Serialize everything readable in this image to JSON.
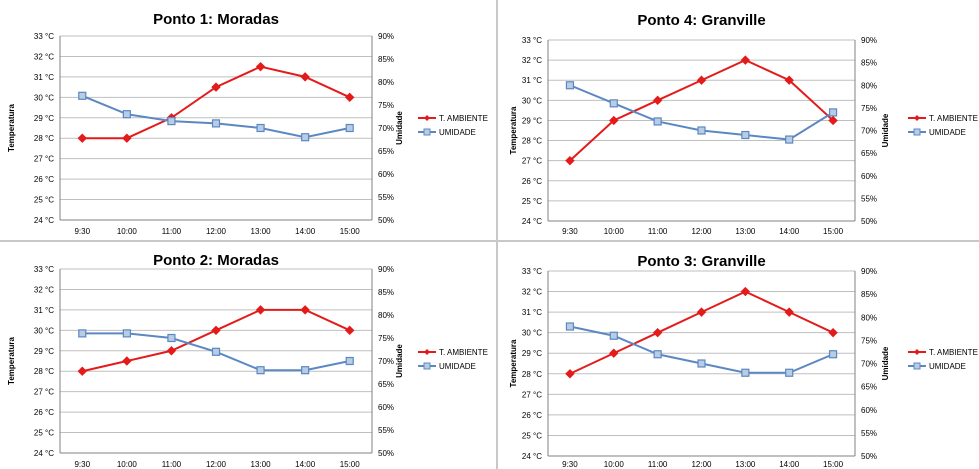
{
  "colors": {
    "temperature": "#e41b1b",
    "humidity": "#5b88c2",
    "grid": "#bfbfbf",
    "axis": "#808080",
    "text": "#000000"
  },
  "chart_data": [
    {
      "type": "line",
      "title": "Ponto 1: Moradas",
      "categories": [
        "9:30",
        "10:00",
        "11:00",
        "12:00",
        "13:00",
        "14:00",
        "15:00"
      ],
      "ylabel": "Temperatura",
      "y2label": "Umidade",
      "yticks": [
        "24 °C",
        "25 °C",
        "26 °C",
        "27 °C",
        "28 °C",
        "29 °C",
        "30 °C",
        "31 °C",
        "32 °C",
        "33 °C"
      ],
      "y2ticks": [
        "50%",
        "55%",
        "60%",
        "65%",
        "70%",
        "75%",
        "80%",
        "85%",
        "90%"
      ],
      "ylim": [
        24,
        33
      ],
      "y2lim": [
        50,
        90
      ],
      "grid": true,
      "legend_position": "right",
      "series": [
        {
          "name": "T. AMBIENTE",
          "axis": "left",
          "marker": "diamond",
          "values": [
            28,
            28,
            29,
            30.5,
            31.5,
            31,
            30
          ]
        },
        {
          "name": "UMIDADE",
          "axis": "right",
          "marker": "square",
          "values": [
            77,
            73,
            71.5,
            71,
            70,
            68,
            70
          ]
        }
      ]
    },
    {
      "type": "line",
      "title": "Ponto 4: Granville",
      "categories": [
        "9:30",
        "10:00",
        "11:00",
        "12:00",
        "13:00",
        "14:00",
        "15:00"
      ],
      "ylabel": "Temperatura",
      "y2label": "Umidade",
      "yticks": [
        "24 °C",
        "25 °C",
        "26 °C",
        "27 °C",
        "28 °C",
        "29 °C",
        "30 °C",
        "31 °C",
        "32 °C",
        "33 °C"
      ],
      "y2ticks": [
        "50%",
        "55%",
        "60%",
        "65%",
        "70%",
        "75%",
        "80%",
        "85%",
        "90%"
      ],
      "ylim": [
        24,
        33
      ],
      "y2lim": [
        50,
        90
      ],
      "grid": true,
      "legend_position": "right",
      "series": [
        {
          "name": "T. AMBIENTE",
          "axis": "left",
          "marker": "diamond",
          "values": [
            27,
            29,
            30,
            31,
            32,
            31,
            29
          ]
        },
        {
          "name": "UMIDADE",
          "axis": "right",
          "marker": "square",
          "values": [
            80,
            76,
            72,
            70,
            69,
            68,
            74
          ]
        }
      ]
    },
    {
      "type": "line",
      "title": "Ponto 2: Moradas",
      "categories": [
        "9:30",
        "10:00",
        "11:00",
        "12:00",
        "13:00",
        "14:00",
        "15:00"
      ],
      "ylabel": "Temperatura",
      "y2label": "Umidade",
      "yticks": [
        "24 °C",
        "25 °C",
        "26 °C",
        "27 °C",
        "28 °C",
        "29 °C",
        "30 °C",
        "31 °C",
        "32 °C",
        "33 °C"
      ],
      "y2ticks": [
        "50%",
        "55%",
        "60%",
        "65%",
        "70%",
        "75%",
        "80%",
        "85%",
        "90%"
      ],
      "ylim": [
        24,
        33
      ],
      "y2lim": [
        50,
        90
      ],
      "grid": true,
      "legend_position": "right",
      "series": [
        {
          "name": "T. AMBIENTE",
          "axis": "left",
          "marker": "diamond",
          "values": [
            28,
            28.5,
            29,
            30,
            31,
            31,
            30
          ]
        },
        {
          "name": "UMIDADE",
          "axis": "right",
          "marker": "square",
          "values": [
            76,
            76,
            75,
            72,
            68,
            68,
            70
          ]
        }
      ]
    },
    {
      "type": "line",
      "title": "Ponto 3: Granville",
      "categories": [
        "9:30",
        "10:00",
        "11:00",
        "12:00",
        "13:00",
        "14:00",
        "15:00"
      ],
      "ylabel": "Temperatura",
      "y2label": "Umidade",
      "yticks": [
        "24 °C",
        "25 °C",
        "26 °C",
        "27 °C",
        "28 °C",
        "29 °C",
        "30 °C",
        "31 °C",
        "32 °C",
        "33 °C"
      ],
      "y2ticks": [
        "50%",
        "55%",
        "60%",
        "65%",
        "70%",
        "75%",
        "80%",
        "85%",
        "90%"
      ],
      "ylim": [
        24,
        33
      ],
      "y2lim": [
        50,
        90
      ],
      "grid": true,
      "legend_position": "right",
      "series": [
        {
          "name": "T. AMBIENTE",
          "axis": "left",
          "marker": "diamond",
          "values": [
            28,
            29,
            30,
            31,
            32,
            31,
            30
          ]
        },
        {
          "name": "UMIDADE",
          "axis": "right",
          "marker": "square",
          "values": [
            78,
            76,
            72,
            70,
            68,
            68,
            72
          ]
        }
      ]
    }
  ]
}
